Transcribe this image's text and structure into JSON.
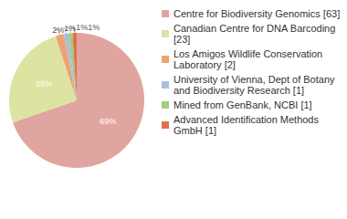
{
  "chart_data": {
    "type": "pie",
    "categories": [
      "Centre for Biodiversity Genomics [63]",
      "Canadian Centre for DNA Barcoding [23]",
      "Los Amigos Wildlife Conservation Laboratory [2]",
      "University of Vienna, Dept of Botany and Biodiversity Research [1]",
      "Mined from GenBank, NCBI [1]",
      "Advanced Identification Methods GmbH [1]"
    ],
    "values": [
      69,
      25,
      2,
      1,
      1,
      1
    ],
    "value_labels": [
      "69%",
      "25%",
      "2%",
      "1%",
      "1%",
      "1%"
    ],
    "colors": [
      "#e0a59e",
      "#dde3a0",
      "#eba470",
      "#a8bfdd",
      "#a3cc7c",
      "#e0714f"
    ],
    "data_labels": true,
    "legend": "right"
  }
}
